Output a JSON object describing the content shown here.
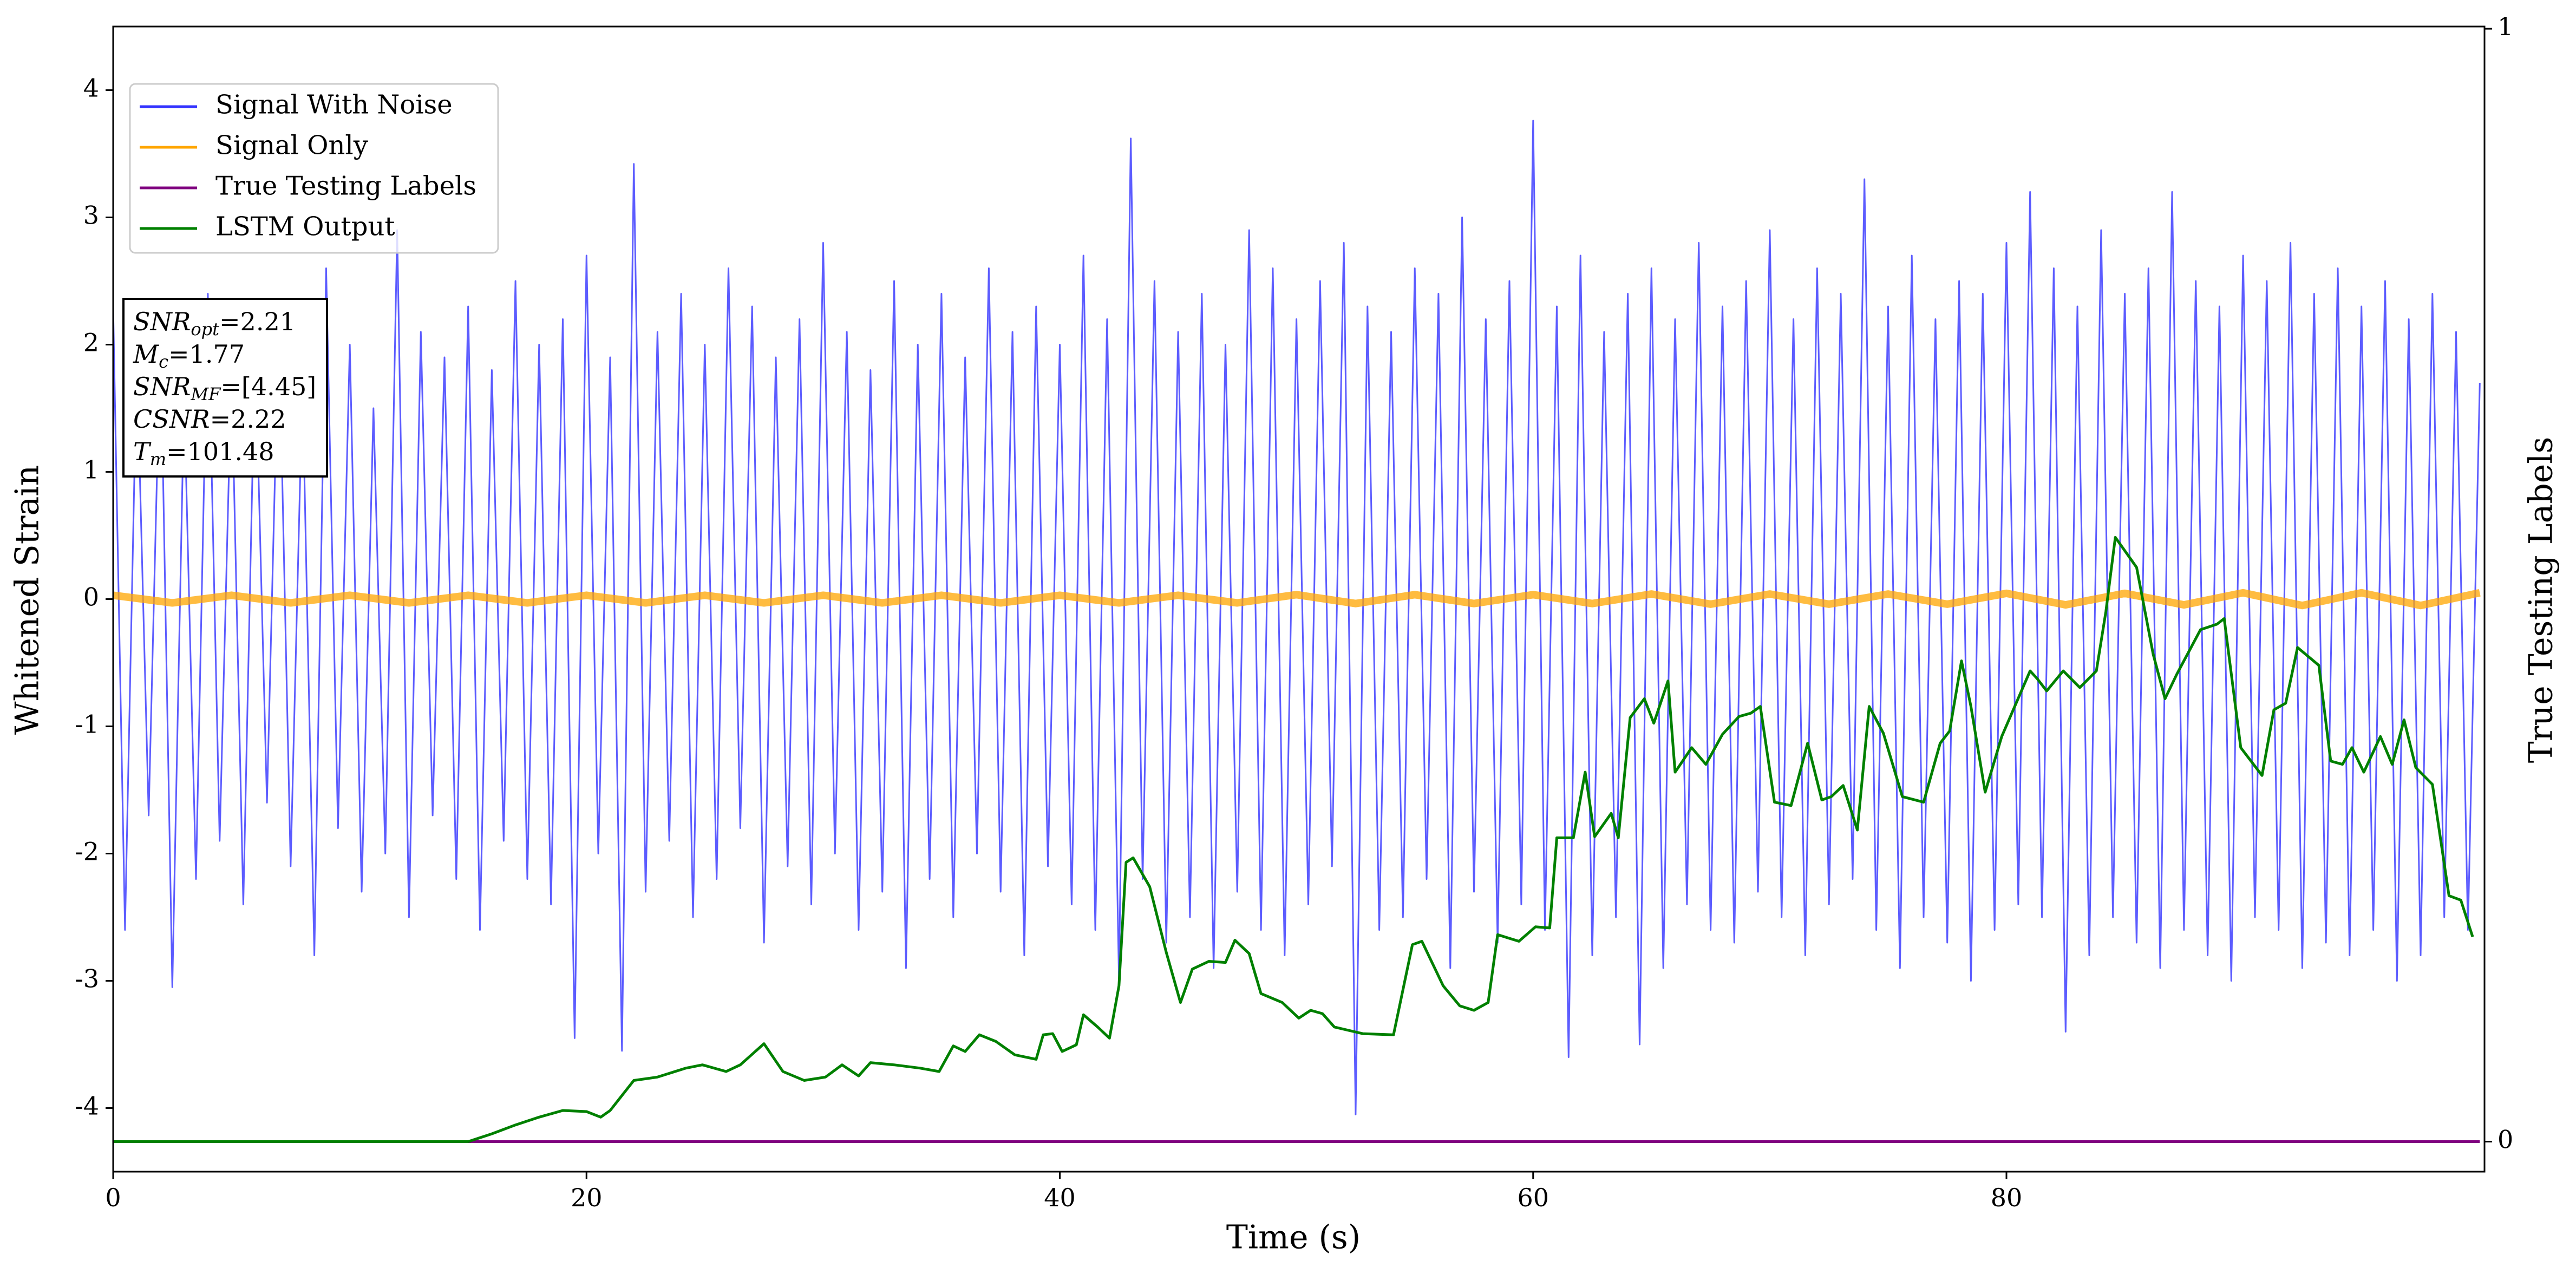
{
  "chart_data": {
    "type": "line",
    "xlabel": "Time (s)",
    "ylabel": "Whitened Strain",
    "y2label": "True Testing Labels",
    "xlim": [
      0,
      100.2
    ],
    "xticks": [
      0,
      20,
      40,
      60,
      80
    ],
    "ylim": [
      -4.5,
      4.5
    ],
    "yticks": [
      -4,
      -3,
      -2,
      -1,
      0,
      1,
      2,
      3,
      4
    ],
    "y2lim": [
      -0.027,
      1.002
    ],
    "y2ticks": [
      0,
      1
    ],
    "grid": false,
    "legend": "upper left",
    "stats": [
      {
        "symbol": "SNR",
        "subscript": "opt",
        "text": "=2.21"
      },
      {
        "symbol": "M",
        "subscript": "c",
        "text": "=1.77"
      },
      {
        "symbol": "SNR",
        "subscript": "MF",
        "text": "=[4.45]"
      },
      {
        "symbol": "CSNR",
        "text": "=2.22"
      },
      {
        "symbol": "T",
        "subscript": "m",
        "text": "=101.48"
      }
    ],
    "series": [
      {
        "name": "Signal With Noise",
        "color": "#3333ff",
        "x": [
          0,
          0.5,
          1,
          1.5,
          2,
          2.5,
          3,
          3.5,
          4,
          4.5,
          5,
          5.5,
          6,
          6.5,
          7,
          7.5,
          8,
          8.5,
          9,
          9.5,
          10,
          10.5,
          11,
          11.5,
          12,
          12.5,
          13,
          13.5,
          14,
          14.5,
          15,
          15.5,
          16,
          16.5,
          17,
          17.5,
          18,
          18.5,
          19,
          19.5,
          20,
          20.5,
          21,
          21.5,
          22,
          22.5,
          23,
          23.5,
          24,
          24.5,
          25,
          25.5,
          26,
          26.5,
          27,
          27.5,
          28,
          28.5,
          29,
          29.5,
          30,
          30.5,
          31,
          31.5,
          32,
          32.5,
          33,
          33.5,
          34,
          34.5,
          35,
          35.5,
          36,
          36.5,
          37,
          37.5,
          38,
          38.5,
          39,
          39.5,
          40,
          40.5,
          41,
          41.5,
          42,
          42.5,
          43,
          43.5,
          44,
          44.5,
          45,
          45.5,
          46,
          46.5,
          47,
          47.5,
          48,
          48.5,
          49,
          49.5,
          50,
          50.5,
          51,
          51.5,
          52,
          52.5,
          53,
          53.5,
          54,
          54.5,
          55,
          55.5,
          56,
          56.5,
          57,
          57.5,
          58,
          58.5,
          59,
          59.5,
          60,
          60.5,
          61,
          61.5,
          62,
          62.5,
          63,
          63.5,
          64,
          64.5,
          65,
          65.5,
          66,
          66.5,
          67,
          67.5,
          68,
          68.5,
          69,
          69.5,
          70,
          70.5,
          71,
          71.5,
          72,
          72.5,
          73,
          73.5,
          74,
          74.5,
          75,
          75.5,
          76,
          76.5,
          77,
          77.5,
          78,
          78.5,
          79,
          79.5,
          80,
          80.5,
          81,
          81.5,
          82,
          82.5,
          83,
          83.5,
          84,
          84.5,
          85,
          85.5,
          86,
          86.5,
          87,
          87.5,
          88,
          88.5,
          89,
          89.5,
          90,
          90.5,
          91,
          91.5,
          92,
          92.5,
          93,
          93.5,
          94,
          94.5,
          95,
          95.5,
          96,
          96.5,
          97,
          97.5,
          98,
          98.5,
          99,
          99.5,
          100
        ],
        "values": [
          2.3,
          -2.6,
          1.9,
          -1.7,
          2.1,
          -3.05,
          1.6,
          -2.2,
          2.4,
          -1.9,
          1.8,
          -2.4,
          2.0,
          -1.6,
          2.2,
          -2.1,
          1.7,
          -2.8,
          2.6,
          -1.8,
          2.0,
          -2.3,
          1.5,
          -2.0,
          2.9,
          -2.5,
          2.1,
          -1.7,
          1.9,
          -2.2,
          2.3,
          -2.6,
          1.8,
          -1.9,
          2.5,
          -2.2,
          2.0,
          -2.4,
          2.2,
          -3.45,
          2.7,
          -2.0,
          1.9,
          -3.55,
          3.42,
          -2.3,
          2.1,
          -1.9,
          2.4,
          -2.5,
          2.0,
          -2.2,
          2.6,
          -1.8,
          2.3,
          -2.7,
          1.9,
          -2.1,
          2.2,
          -2.4,
          2.8,
          -2.0,
          2.1,
          -2.6,
          1.8,
          -2.3,
          2.5,
          -2.9,
          2.0,
          -2.2,
          2.4,
          -2.5,
          1.9,
          -2.0,
          2.6,
          -2.3,
          2.1,
          -2.8,
          2.3,
          -2.1,
          2.0,
          -2.4,
          2.7,
          -2.6,
          2.2,
          -3.0,
          3.62,
          -2.2,
          2.5,
          -2.7,
          2.1,
          -2.5,
          2.4,
          -2.9,
          2.0,
          -2.3,
          2.9,
          -2.6,
          2.6,
          -2.8,
          2.2,
          -2.4,
          2.5,
          -2.1,
          2.8,
          -4.05,
          2.3,
          -2.6,
          2.1,
          -2.5,
          2.6,
          -2.2,
          2.4,
          -2.9,
          3.0,
          -2.3,
          2.2,
          -2.7,
          2.5,
          -2.4,
          3.76,
          -2.6,
          2.3,
          -3.6,
          2.7,
          -2.8,
          2.1,
          -2.5,
          2.4,
          -3.5,
          2.6,
          -2.9,
          2.2,
          -2.4,
          2.8,
          -2.6,
          2.3,
          -2.7,
          2.5,
          -2.3,
          2.9,
          -2.5,
          2.2,
          -2.8,
          2.6,
          -2.4,
          2.4,
          -2.2,
          3.3,
          -2.6,
          2.3,
          -2.9,
          2.7,
          -2.5,
          2.2,
          -2.7,
          2.5,
          -3.0,
          2.4,
          -2.6,
          2.8,
          -2.4,
          3.2,
          -2.5,
          2.6,
          -3.4,
          2.3,
          -2.8,
          2.9,
          -2.5,
          2.4,
          -2.7,
          2.6,
          -2.9,
          3.2,
          -2.6,
          2.5,
          -2.8,
          2.3,
          -3.0,
          2.7,
          -2.5,
          2.5,
          -2.6,
          2.8,
          -2.9,
          2.4,
          -2.7,
          2.6,
          -2.8,
          2.3,
          -2.6,
          2.5,
          -3.0,
          2.2,
          -2.8,
          2.4,
          -2.5,
          2.1,
          -2.6,
          1.7
        ]
      },
      {
        "name": "Signal Only",
        "color": "#ffa500",
        "x": [
          0,
          2.5,
          5,
          7.5,
          10,
          12.5,
          15,
          17.5,
          20,
          22.5,
          25,
          27.5,
          30,
          32.5,
          35,
          37.5,
          40,
          42.5,
          45,
          47.5,
          50,
          52.5,
          55,
          57.5,
          60,
          62.5,
          65,
          67.5,
          70,
          72.5,
          75,
          77.5,
          80,
          82.5,
          85,
          87.5,
          90,
          92.5,
          95,
          97.5,
          100
        ],
        "values": [
          0.03,
          -0.03,
          0.03,
          -0.03,
          0.03,
          -0.03,
          0.03,
          -0.03,
          0.03,
          -0.03,
          0.03,
          -0.03,
          0.03,
          -0.03,
          0.03,
          -0.03,
          0.03,
          -0.03,
          0.03,
          -0.03,
          0.035,
          -0.035,
          0.035,
          -0.035,
          0.035,
          -0.035,
          0.04,
          -0.04,
          0.04,
          -0.04,
          0.04,
          -0.04,
          0.045,
          -0.045,
          0.045,
          -0.045,
          0.05,
          -0.05,
          0.05,
          -0.05,
          0.05
        ]
      },
      {
        "name": "True Testing Labels",
        "color": "#800080",
        "axis": "y2",
        "x": [
          0,
          100
        ],
        "values": [
          0,
          0
        ]
      },
      {
        "name": "LSTM Output",
        "color": "#008000",
        "axis": "y2",
        "x": [
          0,
          15,
          16,
          17,
          18,
          19,
          20,
          20.6,
          21,
          22,
          23,
          24.2,
          24.9,
          25.9,
          26.5,
          27.5,
          28.3,
          29.2,
          30.1,
          30.8,
          31.5,
          32,
          33,
          34.1,
          34.9,
          35.5,
          36,
          36.6,
          37.3,
          38.1,
          39,
          39.3,
          39.7,
          40.1,
          40.7,
          41,
          41.6,
          42.1,
          42.5,
          42.8,
          43.1,
          43.8,
          44.5,
          45.1,
          45.6,
          46.3,
          47,
          47.4,
          48,
          48.5,
          49.4,
          50.1,
          50.6,
          51.1,
          51.6,
          52.4,
          52.8,
          54.1,
          54.9,
          55.3,
          56.2,
          56.9,
          57.5,
          58.1,
          58.5,
          59.4,
          60.1,
          60.7,
          61,
          61.7,
          62.2,
          62.6,
          63.3,
          63.6,
          64.1,
          64.7,
          65.1,
          65.7,
          66,
          66.7,
          67.3,
          68,
          68.7,
          69.2,
          69.6,
          70.2,
          70.9,
          71.6,
          72.2,
          72.6,
          73.1,
          73.7,
          74.2,
          74.8,
          75.6,
          76.5,
          77.2,
          77.6,
          78.1,
          78.5,
          79.1,
          79.8,
          81,
          81.3,
          81.7,
          82.4,
          83.1,
          83.8,
          84.2,
          84.6,
          85.5,
          86.2,
          86.7,
          87.2,
          88.2,
          88.9,
          89.2,
          89.9,
          90.8,
          91.3,
          91.8,
          92.3,
          93.2,
          93.7,
          94.2,
          94.6,
          95.1,
          95.8,
          96.3,
          96.8,
          97.3,
          98,
          98.7,
          99.2,
          99.7
        ],
        "values": [
          0,
          0,
          0.007,
          0.015,
          0.022,
          0.028,
          0.027,
          0.022,
          0.028,
          0.055,
          0.058,
          0.066,
          0.069,
          0.063,
          0.069,
          0.088,
          0.063,
          0.055,
          0.058,
          0.069,
          0.059,
          0.071,
          0.069,
          0.066,
          0.063,
          0.086,
          0.081,
          0.096,
          0.09,
          0.078,
          0.074,
          0.096,
          0.097,
          0.081,
          0.087,
          0.114,
          0.103,
          0.093,
          0.14,
          0.251,
          0.255,
          0.229,
          0.17,
          0.125,
          0.155,
          0.162,
          0.161,
          0.181,
          0.169,
          0.133,
          0.125,
          0.111,
          0.118,
          0.115,
          0.103,
          0.099,
          0.097,
          0.096,
          0.177,
          0.18,
          0.14,
          0.122,
          0.118,
          0.125,
          0.186,
          0.18,
          0.193,
          0.192,
          0.273,
          0.273,
          0.332,
          0.274,
          0.295,
          0.273,
          0.381,
          0.398,
          0.376,
          0.414,
          0.332,
          0.354,
          0.339,
          0.366,
          0.382,
          0.385,
          0.391,
          0.305,
          0.302,
          0.358,
          0.307,
          0.31,
          0.32,
          0.28,
          0.391,
          0.367,
          0.31,
          0.305,
          0.358,
          0.369,
          0.432,
          0.391,
          0.314,
          0.364,
          0.423,
          0.416,
          0.405,
          0.423,
          0.408,
          0.423,
          0.476,
          0.543,
          0.516,
          0.438,
          0.398,
          0.42,
          0.46,
          0.465,
          0.47,
          0.354,
          0.329,
          0.388,
          0.394,
          0.444,
          0.428,
          0.342,
          0.339,
          0.354,
          0.332,
          0.364,
          0.339,
          0.379,
          0.336,
          0.321,
          0.221,
          0.217,
          0.184
        ]
      }
    ]
  }
}
